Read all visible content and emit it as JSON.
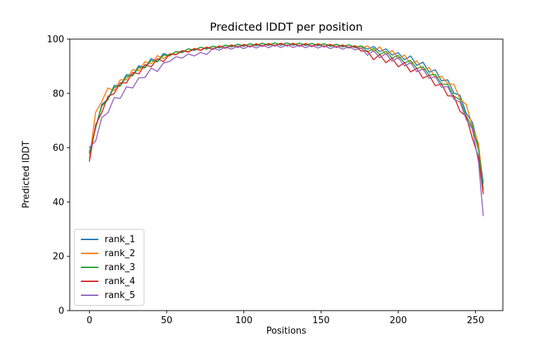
{
  "figure": {
    "background": "#ffffff"
  },
  "chart_data": {
    "type": "line",
    "title": "Predicted lDDT per position",
    "xlabel": "Positions",
    "ylabel": "Predicted lDDT",
    "xlim": [
      -12.75,
      267.75
    ],
    "ylim": [
      0,
      100
    ],
    "xticks": [
      0,
      50,
      100,
      150,
      200,
      250
    ],
    "yticks": [
      0,
      20,
      40,
      60,
      80,
      100
    ],
    "grid": false,
    "legend_position": "lower left",
    "line_width": 1.5,
    "x": [
      0,
      4,
      8,
      12,
      16,
      20,
      24,
      28,
      32,
      36,
      40,
      44,
      48,
      52,
      56,
      60,
      64,
      68,
      72,
      76,
      80,
      84,
      88,
      92,
      96,
      100,
      104,
      108,
      112,
      116,
      120,
      124,
      128,
      132,
      136,
      140,
      144,
      148,
      152,
      156,
      160,
      164,
      168,
      172,
      176,
      180,
      184,
      188,
      192,
      196,
      200,
      204,
      208,
      212,
      216,
      220,
      224,
      228,
      232,
      236,
      240,
      244,
      248,
      252,
      255
    ],
    "series": [
      {
        "name": "rank_1",
        "color": "#1f77b4",
        "values": [
          58.4,
          67.4,
          75.9,
          77.9,
          82.9,
          82.9,
          86.9,
          86.7,
          90.2,
          89.6,
          92.8,
          91.8,
          94.7,
          93.8,
          95.4,
          95.0,
          96.4,
          95.8,
          97.0,
          96.3,
          97.4,
          96.7,
          97.8,
          97.1,
          98.1,
          97.3,
          98.3,
          97.5,
          98.5,
          97.6,
          98.6,
          97.7,
          98.6,
          97.7,
          98.5,
          97.6,
          98.4,
          97.5,
          98.3,
          97.3,
          98.1,
          97.1,
          97.9,
          96.8,
          97.5,
          96.3,
          97.3,
          95.4,
          96.4,
          94.1,
          95.0,
          92.4,
          93.8,
          90.3,
          91.5,
          87.8,
          88.7,
          84.6,
          85.0,
          80.1,
          79.3,
          72.7,
          69.3,
          60.5,
          47.0
        ]
      },
      {
        "name": "rank_2",
        "color": "#ff7f0e",
        "values": [
          56.0,
          73.0,
          77.0,
          82.0,
          81.0,
          85.0,
          85.0,
          88.8,
          88.3,
          91.7,
          90.9,
          93.9,
          92.8,
          94.6,
          94.4,
          95.8,
          95.4,
          96.6,
          96.0,
          97.1,
          96.4,
          97.5,
          96.8,
          97.9,
          97.1,
          98.1,
          97.3,
          98.3,
          97.5,
          98.4,
          97.6,
          98.5,
          97.6,
          98.5,
          97.5,
          98.4,
          97.4,
          98.3,
          97.3,
          98.1,
          97.1,
          97.9,
          96.9,
          97.6,
          96.5,
          97.5,
          95.4,
          97.1,
          94.3,
          95.8,
          92.8,
          94.1,
          90.9,
          92.0,
          88.6,
          89.5,
          85.8,
          86.3,
          83.6,
          83.3,
          77.9,
          75.9,
          67.9,
          61.5,
          44.0
        ]
      },
      {
        "name": "rank_3",
        "color": "#2ca02c",
        "values": [
          57.8,
          67.2,
          75.3,
          77.7,
          82.3,
          82.7,
          86.3,
          86.5,
          89.6,
          89.4,
          92.2,
          91.6,
          94.1,
          94.0,
          95.4,
          95.2,
          96.4,
          96.0,
          97.0,
          96.5,
          97.4,
          96.9,
          97.8,
          97.3,
          98.1,
          97.5,
          98.3,
          97.7,
          98.5,
          97.8,
          98.6,
          97.9,
          98.6,
          97.9,
          98.5,
          97.8,
          98.4,
          97.7,
          98.3,
          97.5,
          98.1,
          97.3,
          97.9,
          97.0,
          97.5,
          95.2,
          96.6,
          94.3,
          95.5,
          93.0,
          94.0,
          91.3,
          92.1,
          89.2,
          89.8,
          86.7,
          87.0,
          83.5,
          83.3,
          79.0,
          77.6,
          71.6,
          67.6,
          59.0,
          45.0
        ]
      },
      {
        "name": "rank_4",
        "color": "#d62728",
        "values": [
          55.0,
          68.4,
          72.9,
          78.9,
          79.9,
          83.9,
          83.9,
          87.7,
          87.2,
          90.6,
          89.8,
          92.8,
          91.7,
          94.5,
          94.2,
          95.7,
          95.2,
          96.5,
          95.8,
          97.0,
          96.2,
          97.4,
          96.6,
          97.8,
          96.9,
          98.0,
          97.1,
          98.2,
          97.3,
          98.3,
          97.4,
          98.4,
          97.4,
          98.4,
          97.3,
          98.3,
          97.2,
          98.2,
          97.1,
          98.0,
          96.9,
          97.8,
          96.7,
          97.5,
          95.6,
          95.6,
          92.4,
          94.3,
          91.3,
          93.0,
          89.8,
          91.3,
          87.9,
          89.2,
          85.6,
          86.7,
          82.8,
          83.5,
          79.1,
          79.0,
          73.4,
          71.6,
          63.4,
          56.5,
          43.0
        ]
      },
      {
        "name": "rank_5",
        "color": "#9467bd",
        "values": [
          60.1,
          62.4,
          71.1,
          72.9,
          78.4,
          78.2,
          82.4,
          82.0,
          85.7,
          85.9,
          89.3,
          88.1,
          91.2,
          91.8,
          93.5,
          93.0,
          94.5,
          93.8,
          95.1,
          94.3,
          96.7,
          95.9,
          97.1,
          96.3,
          97.4,
          96.5,
          97.6,
          96.7,
          97.8,
          96.8,
          97.9,
          96.9,
          97.9,
          96.9,
          97.8,
          96.8,
          97.7,
          96.7,
          97.6,
          96.5,
          97.4,
          96.3,
          97.2,
          96.0,
          96.8,
          94.0,
          95.8,
          93.1,
          94.7,
          91.8,
          93.2,
          90.1,
          91.3,
          88.0,
          89.0,
          85.5,
          86.2,
          82.3,
          82.5,
          77.8,
          76.8,
          70.4,
          66.8,
          54.5,
          35.0
        ]
      }
    ]
  }
}
